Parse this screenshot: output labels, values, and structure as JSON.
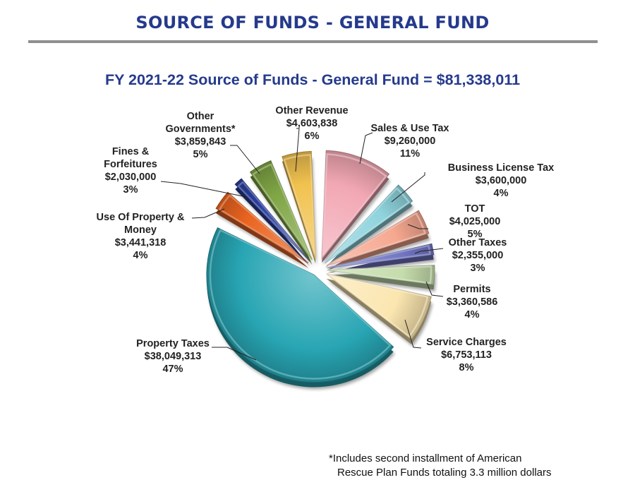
{
  "page": {
    "title": "SOURCE OF FUNDS - GENERAL FUND",
    "footnote_line1": "*Includes second installment of American",
    "footnote_line2": "Rescue Plan Funds totaling 3.3 million dollars"
  },
  "chart_data": {
    "type": "pie",
    "title": "FY 2021-22 Source of Funds - General Fund = $81,338,011",
    "total": 81338011,
    "slices": [
      {
        "label": [
          "Sales & Use Tax"
        ],
        "amount": "$9,260,000",
        "value": 9260000,
        "percent": "11%",
        "color": "#f2a8b4"
      },
      {
        "label": [
          "Business License Tax"
        ],
        "amount": "$3,600,000",
        "value": 3600000,
        "percent": "4%",
        "color": "#8fd3dd"
      },
      {
        "label": [
          "TOT"
        ],
        "amount": "$4,025,000",
        "value": 4025000,
        "percent": "5%",
        "color": "#f6a890"
      },
      {
        "label": [
          "Other Taxes"
        ],
        "amount": "$2,355,000",
        "value": 2355000,
        "percent": "3%",
        "color": "#7276c4"
      },
      {
        "label": [
          "Permits"
        ],
        "amount": "$3,360,586",
        "value": 3360586,
        "percent": "4%",
        "color": "#c5dcac"
      },
      {
        "label": [
          "Service Charges"
        ],
        "amount": "$6,753,113",
        "value": 6753113,
        "percent": "8%",
        "color": "#fbe6b0"
      },
      {
        "label": [
          "Property Taxes"
        ],
        "amount": "$38,049,313",
        "value": 38049313,
        "percent": "47%",
        "color": "#28a5b3"
      },
      {
        "label": [
          "Use Of Property &",
          "Money"
        ],
        "amount": "$3,441,318",
        "value": 3441318,
        "percent": "4%",
        "color": "#ea6420"
      },
      {
        "label": [
          "Fines &",
          "Forfeitures"
        ],
        "amount": "$2,030,000",
        "value": 2030000,
        "percent": "3%",
        "color": "#2b3f9e"
      },
      {
        "label": [
          "Other",
          "Governments*"
        ],
        "amount": "$3,859,843",
        "value": 3859843,
        "percent": "5%",
        "color": "#7fa545"
      },
      {
        "label": [
          "Other Revenue"
        ],
        "amount": "$4,603,838",
        "value": 4603838,
        "percent": "6%",
        "color": "#f1c24f"
      }
    ]
  }
}
